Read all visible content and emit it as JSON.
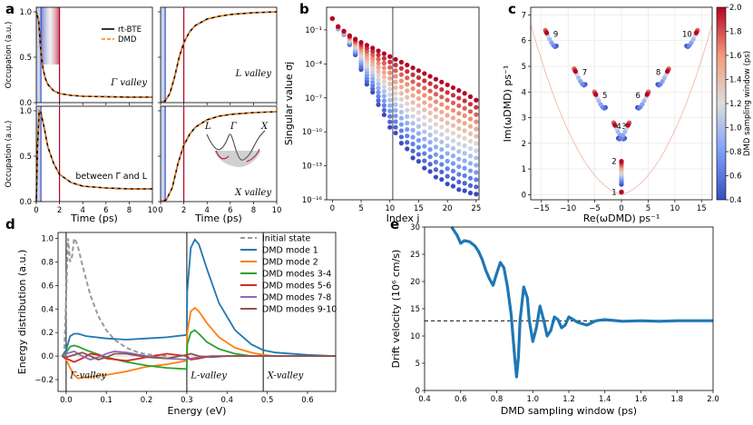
{
  "chart_data": [
    {
      "id": "a",
      "type": "line",
      "panel_label": "a",
      "ylabel": "Occupation (a.u.)",
      "xlabel": "Time (ps)",
      "xlim": [
        0,
        10
      ],
      "ylim": [
        0,
        1.05
      ],
      "xticks": [
        "0",
        "2",
        "4",
        "6",
        "8",
        "10"
      ],
      "yticks": [
        "0.0",
        "0.5",
        "1.0"
      ],
      "legend": [
        "rt-BTE",
        "DMD"
      ],
      "markers": {
        "start_line_ps": 0.4,
        "end_line_ps": 2.0
      },
      "subpanels": [
        {
          "label_html": "Γ valley",
          "label_text": "Γ valley",
          "series": {
            "t": [
              0,
              0.2,
              0.4,
              0.6,
              0.8,
              1.0,
              1.5,
              2.0,
              3.0,
              4.0,
              6.0,
              8.0,
              10.0
            ],
            "value": [
              1.0,
              0.9,
              0.55,
              0.36,
              0.26,
              0.2,
              0.13,
              0.1,
              0.08,
              0.07,
              0.065,
              0.06,
              0.06
            ]
          }
        },
        {
          "label_html": "L valley",
          "label_text": "L valley",
          "series": {
            "t": [
              0,
              0.4,
              0.8,
              1.2,
              1.6,
              2.0,
              2.5,
              3.0,
              4.0,
              5.0,
              6.0,
              8.0,
              10.0
            ],
            "value": [
              0,
              0.02,
              0.1,
              0.28,
              0.5,
              0.66,
              0.78,
              0.85,
              0.92,
              0.95,
              0.97,
              0.99,
              1.0
            ]
          }
        },
        {
          "label_html": "between Γ and L",
          "label_text": "between Γ and L",
          "series": {
            "t": [
              0,
              0.1,
              0.25,
              0.4,
              0.7,
              1.0,
              1.5,
              2.0,
              3.0,
              4.0,
              6.0,
              8.0,
              10.0
            ],
            "value": [
              0,
              0.6,
              1.0,
              0.98,
              0.8,
              0.6,
              0.42,
              0.3,
              0.21,
              0.17,
              0.15,
              0.14,
              0.14
            ]
          }
        },
        {
          "label_html": "X valley",
          "label_text": "X valley",
          "series": {
            "t": [
              0,
              0.5,
              1.0,
              1.5,
              2.0,
              2.5,
              3.0,
              4.0,
              5.0,
              6.0,
              8.0,
              10.0
            ],
            "value": [
              0,
              0.02,
              0.15,
              0.42,
              0.62,
              0.74,
              0.82,
              0.9,
              0.94,
              0.96,
              0.98,
              0.99
            ]
          }
        }
      ],
      "inset_labels": [
        "L",
        "Γ",
        "X"
      ]
    },
    {
      "id": "b",
      "type": "scatter",
      "panel_label": "b",
      "xlabel": "Index j",
      "ylabel": "Singular value σj",
      "yscale": "log",
      "xlim": [
        -1,
        25.5
      ],
      "ylim_exp": [
        -16,
        1
      ],
      "xticks": [
        "0",
        "5",
        "10",
        "15",
        "20",
        "25"
      ],
      "yticks": [
        "10⁻¹",
        "10⁻⁴",
        "10⁻⁷",
        "10⁻¹⁰",
        "10⁻¹³",
        "10⁻¹⁶"
      ],
      "vertical_line_index": 10.5,
      "top_log10": [
        0.0,
        -0.7,
        -1.1,
        -1.5,
        -1.8,
        -2.1,
        -2.35,
        -2.6,
        -2.85,
        -3.1,
        -3.35,
        -3.6,
        -3.85,
        -4.1,
        -4.35,
        -4.6,
        -4.85,
        -5.1,
        -5.35,
        -5.6,
        -5.85,
        -6.1,
        -6.35,
        -6.6,
        -6.9,
        -7.2
      ],
      "bottom_log10": [
        0.0,
        -0.9,
        -1.4,
        -2.3,
        -3.2,
        -4.5,
        -5.8,
        -6.5,
        -7.6,
        -8.5,
        -9.6,
        -10.1,
        -11.0,
        -11.5,
        -12.3,
        -12.6,
        -13.2,
        -13.5,
        -14.0,
        -14.2,
        -14.6,
        -14.8,
        -15.1,
        -15.2,
        -15.4,
        -15.5
      ],
      "colorscale": "DMD sampling window (ps)"
    },
    {
      "id": "c",
      "type": "scatter",
      "panel_label": "c",
      "xlabel": "Re(ωDMD) ps⁻¹",
      "ylabel": "Im(ωDMD) ps⁻¹",
      "xlim": [
        -17,
        17
      ],
      "ylim": [
        -0.2,
        7.3
      ],
      "xticks": [
        "−15",
        "−10",
        "−5",
        "0",
        "5",
        "10",
        "15"
      ],
      "yticks": [
        "0",
        "1",
        "2",
        "3",
        "4",
        "5",
        "6",
        "7"
      ],
      "colorbar": {
        "label": "DMD sampling window (ps)",
        "min": 0.4,
        "max": 2.0,
        "ticks": [
          "0.4",
          "0.6",
          "0.8",
          "1.0",
          "1.2",
          "1.4",
          "1.6",
          "1.8",
          "2.0"
        ]
      },
      "modes": [
        {
          "n": "1",
          "re": 0.0,
          "im": 0.1
        },
        {
          "n": "2",
          "re": 0.0,
          "im": 1.3
        },
        {
          "n": "3",
          "re": -1.2,
          "im": 2.7
        },
        {
          "n": "4",
          "re": 1.2,
          "im": 2.7
        },
        {
          "n": "5",
          "re": -4.8,
          "im": 3.9
        },
        {
          "n": "6",
          "re": 4.8,
          "im": 3.9
        },
        {
          "n": "7",
          "re": -8.6,
          "im": 4.8
        },
        {
          "n": "8",
          "re": 8.6,
          "im": 4.8
        },
        {
          "n": "9",
          "re": -14.0,
          "im": 6.3
        },
        {
          "n": "10",
          "re": 14.0,
          "im": 6.3
        }
      ]
    },
    {
      "id": "d",
      "type": "line",
      "panel_label": "d",
      "xlabel": "Energy (eV)",
      "ylabel": "Energy distribution (a.u.)",
      "xlim": [
        -0.02,
        0.67
      ],
      "ylim": [
        -0.3,
        1.05
      ],
      "xticks": [
        "0.0",
        "0.1",
        "0.2",
        "0.3",
        "0.4",
        "0.5",
        "0.6"
      ],
      "yticks": [
        "−0.2",
        "0.0",
        "0.2",
        "0.4",
        "0.6",
        "0.8",
        "1.0"
      ],
      "valley_labels": [
        "Γ-valley",
        "L-valley",
        "X-valley"
      ],
      "valley_lines_eV": [
        0.0,
        0.3,
        0.49
      ],
      "series": [
        {
          "name": "Initial state",
          "color": "#999999",
          "dashed": true,
          "x": [
            -0.005,
            0.0,
            0.005,
            0.01,
            0.015,
            0.02,
            0.025,
            0.03,
            0.04,
            0.05,
            0.06,
            0.08,
            0.1,
            0.12,
            0.15,
            0.18,
            0.2,
            0.25
          ],
          "y": [
            0.0,
            0.5,
            1.0,
            0.8,
            0.85,
            1.0,
            0.97,
            0.92,
            0.78,
            0.65,
            0.52,
            0.34,
            0.22,
            0.14,
            0.07,
            0.03,
            0.015,
            0.0
          ]
        },
        {
          "name": "DMD mode 1",
          "color": "#1f77b4",
          "x": [
            -0.01,
            0.0,
            0.01,
            0.02,
            0.03,
            0.05,
            0.1,
            0.15,
            0.2,
            0.25,
            0.3,
            0.301,
            0.31,
            0.32,
            0.33,
            0.35,
            0.38,
            0.42,
            0.46,
            0.49,
            0.52,
            0.6,
            0.67
          ],
          "y": [
            0.0,
            0.05,
            0.17,
            0.19,
            0.19,
            0.17,
            0.15,
            0.14,
            0.15,
            0.16,
            0.18,
            0.55,
            0.92,
            0.99,
            0.95,
            0.74,
            0.45,
            0.22,
            0.1,
            0.05,
            0.03,
            0.01,
            0.0
          ]
        },
        {
          "name": "DMD mode 2",
          "color": "#ff7f0e",
          "x": [
            -0.01,
            0.0,
            0.01,
            0.02,
            0.03,
            0.05,
            0.1,
            0.15,
            0.2,
            0.25,
            0.3,
            0.301,
            0.31,
            0.32,
            0.33,
            0.35,
            0.38,
            0.42,
            0.46,
            0.49,
            0.52,
            0.6,
            0.67
          ],
          "y": [
            0.0,
            -0.03,
            -0.1,
            -0.16,
            -0.19,
            -0.18,
            -0.16,
            -0.13,
            -0.09,
            -0.07,
            -0.04,
            0.2,
            0.38,
            0.41,
            0.38,
            0.28,
            0.16,
            0.07,
            0.03,
            0.01,
            0.0,
            0.0,
            0.0
          ]
        },
        {
          "name": "DMD modes 3-4",
          "color": "#2ca02c",
          "x": [
            -0.01,
            0.0,
            0.01,
            0.02,
            0.03,
            0.05,
            0.1,
            0.15,
            0.2,
            0.25,
            0.3,
            0.301,
            0.31,
            0.32,
            0.33,
            0.35,
            0.38,
            0.42,
            0.46,
            0.5,
            0.6,
            0.67
          ],
          "y": [
            0.0,
            0.03,
            0.08,
            0.09,
            0.08,
            0.05,
            -0.01,
            -0.05,
            -0.08,
            -0.1,
            -0.11,
            0.1,
            0.2,
            0.22,
            0.19,
            0.12,
            0.06,
            0.02,
            0.0,
            0.0,
            0.0,
            0.0
          ]
        },
        {
          "name": "DMD modes 5-6",
          "color": "#d62728",
          "x": [
            -0.01,
            0.0,
            0.02,
            0.04,
            0.06,
            0.08,
            0.1,
            0.15,
            0.2,
            0.25,
            0.3,
            0.31,
            0.33,
            0.36,
            0.4,
            0.45,
            0.5,
            0.6,
            0.67
          ],
          "y": [
            0.0,
            -0.02,
            -0.05,
            -0.02,
            0.02,
            0.01,
            -0.02,
            -0.04,
            -0.01,
            0.02,
            0.0,
            -0.03,
            -0.02,
            0.0,
            0.0,
            0.0,
            0.0,
            0.0,
            0.0
          ]
        },
        {
          "name": "DMD modes 7-8",
          "color": "#9467bd",
          "x": [
            -0.01,
            0.0,
            0.02,
            0.04,
            0.06,
            0.08,
            0.1,
            0.12,
            0.15,
            0.2,
            0.25,
            0.3,
            0.31,
            0.33,
            0.36,
            0.4,
            0.45,
            0.5,
            0.67
          ],
          "y": [
            0.0,
            0.02,
            0.04,
            0.0,
            -0.03,
            -0.01,
            0.02,
            0.04,
            0.03,
            0.0,
            -0.02,
            -0.03,
            -0.02,
            -0.01,
            0.0,
            0.0,
            0.0,
            0.0,
            0.0
          ]
        },
        {
          "name": "DMD modes 9-10",
          "color": "#8c564b",
          "x": [
            -0.01,
            0.0,
            0.02,
            0.04,
            0.06,
            0.08,
            0.1,
            0.12,
            0.15,
            0.2,
            0.25,
            0.3,
            0.31,
            0.33,
            0.36,
            0.4,
            0.45,
            0.5,
            0.67
          ],
          "y": [
            0.0,
            -0.01,
            0.01,
            0.03,
            0.0,
            -0.03,
            -0.01,
            0.02,
            0.02,
            -0.01,
            -0.02,
            0.01,
            0.02,
            0.0,
            -0.01,
            0.0,
            0.0,
            0.0,
            0.0
          ]
        }
      ]
    },
    {
      "id": "e",
      "type": "line",
      "panel_label": "e",
      "xlabel": "DMD sampling window (ps)",
      "ylabel": "Drift velocity (10⁶ cm/s)",
      "xlim": [
        0.4,
        2.0
      ],
      "ylim": [
        0,
        30
      ],
      "xticks": [
        "0.4",
        "0.6",
        "0.8",
        "1.0",
        "1.2",
        "1.4",
        "1.6",
        "1.8",
        "2.0"
      ],
      "yticks": [
        "0",
        "5",
        "10",
        "15",
        "20",
        "25",
        "30"
      ],
      "reference_value": 12.8,
      "series": {
        "x": [
          0.55,
          0.58,
          0.6,
          0.62,
          0.65,
          0.68,
          0.7,
          0.72,
          0.74,
          0.76,
          0.78,
          0.8,
          0.82,
          0.84,
          0.86,
          0.88,
          0.9,
          0.91,
          0.92,
          0.93,
          0.95,
          0.97,
          0.98,
          1.0,
          1.02,
          1.04,
          1.06,
          1.08,
          1.1,
          1.12,
          1.14,
          1.16,
          1.18,
          1.2,
          1.25,
          1.3,
          1.35,
          1.4,
          1.5,
          1.6,
          1.7,
          1.8,
          1.9,
          2.0
        ],
        "y": [
          30.0,
          28.5,
          27.0,
          27.5,
          27.3,
          26.5,
          25.5,
          24.0,
          22.0,
          20.5,
          19.3,
          21.5,
          23.5,
          22.5,
          19.0,
          14.0,
          6.0,
          2.5,
          6.0,
          13.0,
          19.0,
          17.0,
          13.0,
          9.0,
          11.5,
          15.5,
          13.0,
          10.0,
          11.0,
          13.5,
          13.0,
          11.5,
          12.0,
          13.5,
          12.5,
          12.0,
          12.8,
          13.0,
          12.7,
          12.8,
          12.7,
          12.8,
          12.8,
          12.8
        ]
      }
    }
  ]
}
